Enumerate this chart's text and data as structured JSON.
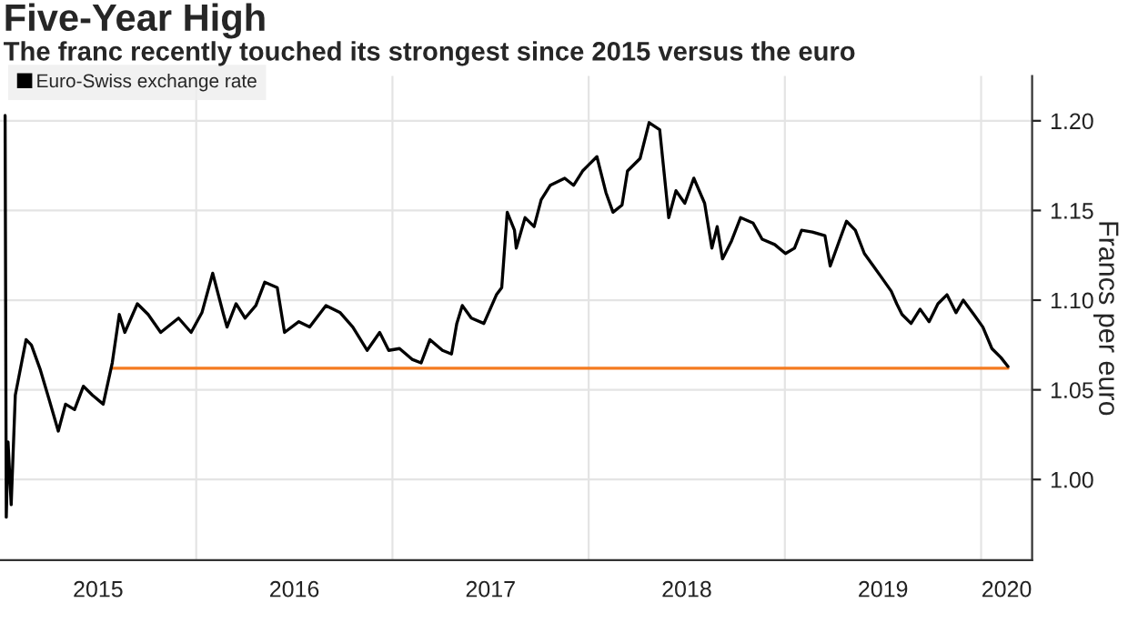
{
  "chart_data": {
    "type": "line",
    "title": "Five-Year High",
    "subtitle": "The franc recently touched its strongest since 2015 versus the euro",
    "ylabel": "Francs per euro",
    "xlim": [
      2015.0,
      2020.26
    ],
    "xticks": [
      {
        "value": 2015.5,
        "label": "2015"
      },
      {
        "value": 2016.0,
        "label": null
      },
      {
        "value": 2016.5,
        "label": "2016"
      },
      {
        "value": 2017.0,
        "label": null
      },
      {
        "value": 2017.5,
        "label": "2017"
      },
      {
        "value": 2018.0,
        "label": null
      },
      {
        "value": 2018.5,
        "label": "2018"
      },
      {
        "value": 2019.0,
        "label": null
      },
      {
        "value": 2019.5,
        "label": "2019"
      },
      {
        "value": 2020.0,
        "label": null
      },
      {
        "value": 2020.13,
        "label": "2020"
      }
    ],
    "ylim": [
      0.955,
      1.225
    ],
    "yticks": [
      {
        "value": 1.0,
        "label": "1.00"
      },
      {
        "value": 1.05,
        "label": "1.05"
      },
      {
        "value": 1.1,
        "label": "1.10"
      },
      {
        "value": 1.15,
        "label": "1.15"
      },
      {
        "value": 1.2,
        "label": "1.20"
      }
    ],
    "grid": true,
    "legend": "top left",
    "series": [
      {
        "name": "Euro-Swiss exchange rate",
        "color": "#000000",
        "x": [
          2015.026,
          2015.032,
          2015.041,
          2015.057,
          2015.078,
          2015.133,
          2015.16,
          2015.206,
          2015.252,
          2015.297,
          2015.334,
          2015.38,
          2015.425,
          2015.471,
          2015.526,
          2015.572,
          2015.608,
          2015.636,
          2015.7,
          2015.755,
          2015.819,
          2015.91,
          2015.974,
          2016.029,
          2016.084,
          2016.139,
          2016.157,
          2016.203,
          2016.249,
          2016.304,
          2016.349,
          2016.413,
          2016.45,
          2016.523,
          2016.578,
          2016.661,
          2016.734,
          2016.798,
          2016.871,
          2016.935,
          2016.981,
          2017.036,
          2017.1,
          2017.146,
          2017.191,
          2017.255,
          2017.301,
          2017.328,
          2017.356,
          2017.402,
          2017.466,
          2017.53,
          2017.557,
          2017.585,
          2017.622,
          2017.631,
          2017.676,
          2017.722,
          2017.758,
          2017.804,
          2017.878,
          2017.923,
          2017.969,
          2017.996,
          2018.042,
          2018.088,
          2018.124,
          2018.17,
          2018.198,
          2018.262,
          2018.308,
          2018.362,
          2018.408,
          2018.445,
          2018.49,
          2018.536,
          2018.591,
          2018.628,
          2018.655,
          2018.682,
          2018.728,
          2018.774,
          2018.838,
          2018.884,
          2018.948,
          2019.003,
          2019.049,
          2019.085,
          2019.14,
          2019.204,
          2019.231,
          2019.277,
          2019.314,
          2019.359,
          2019.405,
          2019.451,
          2019.497,
          2019.542,
          2019.57,
          2019.597,
          2019.643,
          2019.689,
          2019.735,
          2019.78,
          2019.826,
          2019.872,
          2019.909,
          2019.963,
          2020.009,
          2020.055,
          2020.101,
          2020.137
        ],
        "values": [
          1.203,
          0.979,
          1.021,
          0.986,
          1.047,
          1.078,
          1.075,
          1.061,
          1.044,
          1.027,
          1.042,
          1.039,
          1.052,
          1.047,
          1.042,
          1.065,
          1.092,
          1.082,
          1.098,
          1.092,
          1.082,
          1.09,
          1.082,
          1.093,
          1.115,
          1.092,
          1.085,
          1.098,
          1.09,
          1.097,
          1.11,
          1.107,
          1.082,
          1.088,
          1.085,
          1.097,
          1.093,
          1.085,
          1.072,
          1.082,
          1.072,
          1.073,
          1.067,
          1.065,
          1.078,
          1.072,
          1.07,
          1.087,
          1.097,
          1.09,
          1.087,
          1.103,
          1.107,
          1.149,
          1.139,
          1.129,
          1.146,
          1.141,
          1.156,
          1.164,
          1.168,
          1.164,
          1.172,
          1.175,
          1.18,
          1.16,
          1.149,
          1.153,
          1.172,
          1.179,
          1.199,
          1.195,
          1.146,
          1.161,
          1.154,
          1.168,
          1.154,
          1.129,
          1.141,
          1.123,
          1.133,
          1.146,
          1.143,
          1.134,
          1.131,
          1.126,
          1.129,
          1.139,
          1.138,
          1.136,
          1.119,
          1.133,
          1.144,
          1.139,
          1.126,
          1.119,
          1.112,
          1.105,
          1.098,
          1.092,
          1.087,
          1.095,
          1.088,
          1.098,
          1.103,
          1.093,
          1.1,
          1.092,
          1.085,
          1.073,
          1.068,
          1.063
        ]
      },
      {
        "color": "#f47b20",
        "x": [
          2015.572,
          2020.137
        ],
        "values": [
          1.062,
          1.062
        ]
      }
    ]
  }
}
